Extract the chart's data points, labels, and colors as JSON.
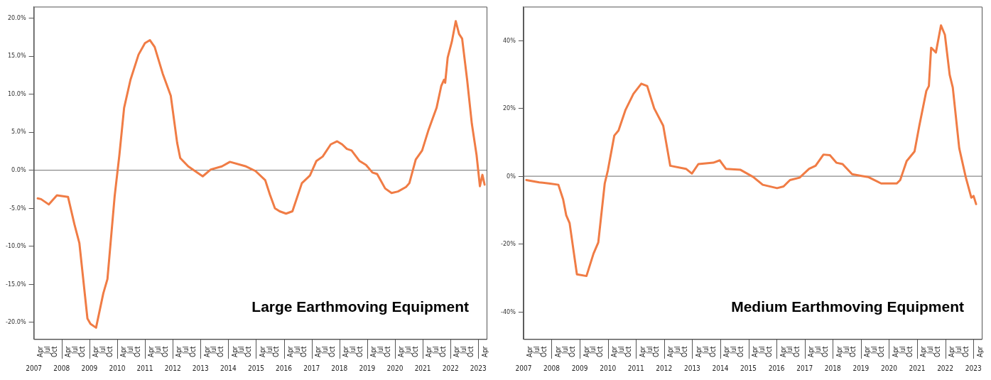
{
  "chart_data": [
    {
      "type": "line",
      "annotations": [
        "Large Earthmoving Equipment"
      ],
      "grid": false,
      "xlim": [
        2007,
        2023.3
      ],
      "ylim": [
        -22.2,
        21.5
      ],
      "yticks": [
        {
          "value": -20,
          "label": "-20.0%"
        },
        {
          "value": -15,
          "label": "-15.0%"
        },
        {
          "value": -10,
          "label": "-10.0%"
        },
        {
          "value": -5,
          "label": "-5.0%"
        },
        {
          "value": 0,
          "label": "0.0%"
        },
        {
          "value": 5,
          "label": "5.0%"
        },
        {
          "value": 10,
          "label": "10.0%"
        },
        {
          "value": 15,
          "label": "15.0%"
        },
        {
          "value": 20,
          "label": "20.0%"
        }
      ],
      "xticks": [
        2007,
        2008,
        2009,
        2010,
        2011,
        2012,
        2013,
        2014,
        2015,
        2016,
        2017,
        2018,
        2019,
        2020,
        2021,
        2022,
        2023
      ],
      "x2lim": [
        "2007-01-01",
        "2023-04-20"
      ],
      "x2ticks": [
        {
          "value": "2007-04",
          "label": "Apr"
        },
        {
          "value": "2007-07",
          "label": "Jul"
        },
        {
          "value": "2007-10",
          "label": "Oct"
        },
        {
          "value": "2008-04",
          "label": "Apr"
        },
        {
          "value": "2008-07",
          "label": "Jul"
        },
        {
          "value": "2008-10",
          "label": "Oct"
        },
        {
          "value": "2009-04",
          "label": "Apr"
        },
        {
          "value": "2009-07",
          "label": "Jul"
        },
        {
          "value": "2009-10",
          "label": "Oct"
        },
        {
          "value": "2010-04",
          "label": "Apr"
        },
        {
          "value": "2010-07",
          "label": "Jul"
        },
        {
          "value": "2010-10",
          "label": "Oct"
        },
        {
          "value": "2011-04",
          "label": "Apr"
        },
        {
          "value": "2011-07",
          "label": "Jul"
        },
        {
          "value": "2011-10",
          "label": "Oct"
        },
        {
          "value": "2012-04",
          "label": "Apr"
        },
        {
          "value": "2012-07",
          "label": "Jul"
        },
        {
          "value": "2012-10",
          "label": "Oct"
        },
        {
          "value": "2013-04",
          "label": "Apr"
        },
        {
          "value": "2013-07",
          "label": "Jul"
        },
        {
          "value": "2013-10",
          "label": "Oct"
        },
        {
          "value": "2014-04",
          "label": "Apr"
        },
        {
          "value": "2014-07",
          "label": "Jul"
        },
        {
          "value": "2014-10",
          "label": "Oct"
        },
        {
          "value": "2015-04",
          "label": "Apr"
        },
        {
          "value": "2015-07",
          "label": "Jul"
        },
        {
          "value": "2015-10",
          "label": "Oct"
        },
        {
          "value": "2016-04",
          "label": "Apr"
        },
        {
          "value": "2016-07",
          "label": "Jul"
        },
        {
          "value": "2016-10",
          "label": "Oct"
        },
        {
          "value": "2017-04",
          "label": "Apr"
        },
        {
          "value": "2017-07",
          "label": "Jul"
        },
        {
          "value": "2017-10",
          "label": "Oct"
        },
        {
          "value": "2018-04",
          "label": "Apr"
        },
        {
          "value": "2018-07",
          "label": "Jul"
        },
        {
          "value": "2018-10",
          "label": "Oct"
        },
        {
          "value": "2019-04",
          "label": "Apr"
        },
        {
          "value": "2019-07",
          "label": "Jul"
        },
        {
          "value": "2019-10",
          "label": "Oct"
        },
        {
          "value": "2020-04",
          "label": "Apr"
        },
        {
          "value": "2020-07",
          "label": "Jul"
        },
        {
          "value": "2020-10",
          "label": "Oct"
        },
        {
          "value": "2021-04",
          "label": "Apr"
        },
        {
          "value": "2021-07",
          "label": "Jul"
        },
        {
          "value": "2021-10",
          "label": "Oct"
        },
        {
          "value": "2022-04",
          "label": "Apr"
        },
        {
          "value": "2022-07",
          "label": "Jul"
        },
        {
          "value": "2022-10",
          "label": "Oct"
        },
        {
          "value": "2023-04",
          "label": "Apr"
        }
      ],
      "ref_lines": [
        {
          "axis": "y",
          "value": 0,
          "color": "#8a8a8a"
        }
      ],
      "x": [
        2007.14,
        2007.26,
        2007.54,
        2007.83,
        2008.23,
        2008.46,
        2008.64,
        2008.93,
        2009.04,
        2009.24,
        2009.5,
        2009.65,
        2009.91,
        2010.08,
        2010.25,
        2010.48,
        2010.77,
        2011.0,
        2011.18,
        2011.35,
        2011.64,
        2011.93,
        2012.16,
        2012.27,
        2012.56,
        2013.08,
        2013.37,
        2013.77,
        2014.06,
        2014.64,
        2014.98,
        2015.33,
        2015.5,
        2015.68,
        2015.85,
        2016.08,
        2016.31,
        2016.65,
        2016.94,
        2017.17,
        2017.4,
        2017.69,
        2017.92,
        2018.1,
        2018.27,
        2018.44,
        2018.73,
        2018.96,
        2019.19,
        2019.36,
        2019.65,
        2019.88,
        2020.11,
        2020.4,
        2020.52,
        2020.75,
        2020.98,
        2021.21,
        2021.33,
        2021.5,
        2021.67,
        2021.77,
        2021.81,
        2021.9,
        2022.05,
        2022.19,
        2022.31,
        2022.42,
        2022.6,
        2022.77,
        2022.94,
        2023.06,
        2023.15,
        2023.23
      ],
      "series": [
        {
          "color": "#f07c45",
          "values": [
            -3.7,
            -3.8,
            -4.5,
            -3.3,
            -3.5,
            -7.1,
            -9.6,
            -19.5,
            -20.2,
            -20.7,
            -16.2,
            -14.3,
            -3.4,
            2.0,
            8.2,
            11.9,
            15.2,
            16.7,
            17.1,
            16.2,
            12.7,
            9.8,
            3.6,
            1.6,
            0.5,
            -0.8,
            0.1,
            0.5,
            1.1,
            0.5,
            -0.1,
            -1.3,
            -3.2,
            -5.0,
            -5.4,
            -5.7,
            -5.4,
            -1.7,
            -0.7,
            1.2,
            1.8,
            3.4,
            3.8,
            3.4,
            2.8,
            2.6,
            1.2,
            0.7,
            -0.3,
            -0.5,
            -2.4,
            -3.0,
            -2.8,
            -2.2,
            -1.7,
            1.4,
            2.6,
            5.3,
            6.5,
            8.2,
            11.1,
            11.9,
            11.5,
            14.8,
            16.9,
            19.6,
            17.9,
            17.3,
            11.9,
            6.1,
            2.0,
            -2.1,
            -0.6,
            -1.9
          ]
        }
      ]
    },
    {
      "type": "line",
      "annotations": [
        "Medium Earthmoving Equipment"
      ],
      "grid": false,
      "xlim": [
        2007,
        2023.3
      ],
      "ylim": [
        -48,
        50
      ],
      "yticks": [
        {
          "value": -40,
          "label": "-40%"
        },
        {
          "value": -20,
          "label": "-20%"
        },
        {
          "value": 0,
          "label": "0%"
        },
        {
          "value": 20,
          "label": "20%"
        },
        {
          "value": 40,
          "label": "40%"
        }
      ],
      "xticks": [
        2007,
        2008,
        2009,
        2010,
        2011,
        2012,
        2013,
        2014,
        2015,
        2016,
        2017,
        2018,
        2019,
        2020,
        2021,
        2022,
        2023
      ],
      "x2lim": [
        "2007-01-01",
        "2023-04-20"
      ],
      "x2ticks": [
        {
          "value": "2007-04",
          "label": "Apr"
        },
        {
          "value": "2007-07",
          "label": "Jul"
        },
        {
          "value": "2007-10",
          "label": "Oct"
        },
        {
          "value": "2008-04",
          "label": "Apr"
        },
        {
          "value": "2008-07",
          "label": "Jul"
        },
        {
          "value": "2008-10",
          "label": "Oct"
        },
        {
          "value": "2009-04",
          "label": "Apr"
        },
        {
          "value": "2009-07",
          "label": "Jul"
        },
        {
          "value": "2009-10",
          "label": "Oct"
        },
        {
          "value": "2010-04",
          "label": "Apr"
        },
        {
          "value": "2010-07",
          "label": "Jul"
        },
        {
          "value": "2010-10",
          "label": "Oct"
        },
        {
          "value": "2011-04",
          "label": "Apr"
        },
        {
          "value": "2011-07",
          "label": "Jul"
        },
        {
          "value": "2011-10",
          "label": "Oct"
        },
        {
          "value": "2012-04",
          "label": "Apr"
        },
        {
          "value": "2012-07",
          "label": "Jul"
        },
        {
          "value": "2012-10",
          "label": "Oct"
        },
        {
          "value": "2013-04",
          "label": "Apr"
        },
        {
          "value": "2013-07",
          "label": "Jul"
        },
        {
          "value": "2013-10",
          "label": "Oct"
        },
        {
          "value": "2014-04",
          "label": "Apr"
        },
        {
          "value": "2014-07",
          "label": "Jul"
        },
        {
          "value": "2014-10",
          "label": "Oct"
        },
        {
          "value": "2015-04",
          "label": "Apr"
        },
        {
          "value": "2015-07",
          "label": "Jul"
        },
        {
          "value": "2015-10",
          "label": "Oct"
        },
        {
          "value": "2016-04",
          "label": "Apr"
        },
        {
          "value": "2016-07",
          "label": "Jul"
        },
        {
          "value": "2016-10",
          "label": "Oct"
        },
        {
          "value": "2017-04",
          "label": "Apr"
        },
        {
          "value": "2017-07",
          "label": "Jul"
        },
        {
          "value": "2017-10",
          "label": "Oct"
        },
        {
          "value": "2018-04",
          "label": "Apr"
        },
        {
          "value": "2018-07",
          "label": "Jul"
        },
        {
          "value": "2018-10",
          "label": "Oct"
        },
        {
          "value": "2019-04",
          "label": "Apr"
        },
        {
          "value": "2019-07",
          "label": "Jul"
        },
        {
          "value": "2019-10",
          "label": "Oct"
        },
        {
          "value": "2020-04",
          "label": "Apr"
        },
        {
          "value": "2020-07",
          "label": "Jul"
        },
        {
          "value": "2020-10",
          "label": "Oct"
        },
        {
          "value": "2021-04",
          "label": "Apr"
        },
        {
          "value": "2021-07",
          "label": "Jul"
        },
        {
          "value": "2021-10",
          "label": "Oct"
        },
        {
          "value": "2022-04",
          "label": "Apr"
        },
        {
          "value": "2022-07",
          "label": "Jul"
        },
        {
          "value": "2022-10",
          "label": "Oct"
        },
        {
          "value": "2023-04",
          "label": "Apr"
        }
      ],
      "ref_lines": [
        {
          "axis": "y",
          "value": 0,
          "color": "#8a8a8a"
        }
      ],
      "x": [
        2007.1,
        2007.56,
        2007.9,
        2008.24,
        2008.41,
        2008.52,
        2008.64,
        2008.9,
        2009.24,
        2009.49,
        2009.66,
        2009.89,
        2010.0,
        2010.23,
        2010.38,
        2010.63,
        2010.91,
        2011.19,
        2011.4,
        2011.65,
        2011.97,
        2012.22,
        2012.78,
        2012.99,
        2013.22,
        2013.75,
        2013.98,
        2014.2,
        2014.72,
        2015.17,
        2015.51,
        2016.02,
        2016.25,
        2016.48,
        2016.82,
        2017.16,
        2017.39,
        2017.67,
        2017.9,
        2018.13,
        2018.35,
        2018.69,
        2019.03,
        2019.26,
        2019.72,
        2020.28,
        2020.4,
        2020.63,
        2020.91,
        2021.08,
        2021.33,
        2021.42,
        2021.5,
        2021.67,
        2021.85,
        2021.99,
        2022.16,
        2022.27,
        2022.5,
        2022.73,
        2022.93,
        2023.01,
        2023.1
      ],
      "series": [
        {
          "color": "#f07c45",
          "values": [
            -1.1,
            -1.8,
            -2.1,
            -2.5,
            -6.8,
            -11.5,
            -13.8,
            -28.9,
            -29.4,
            -22.8,
            -19.5,
            -2.1,
            1.7,
            12.0,
            13.5,
            19.6,
            24.3,
            27.3,
            26.6,
            20.0,
            14.9,
            3.1,
            2.2,
            0.8,
            3.6,
            4.0,
            4.7,
            2.2,
            1.9,
            -0.2,
            -2.5,
            -3.5,
            -3.0,
            -1.1,
            -0.4,
            2.2,
            3.1,
            6.4,
            6.2,
            4.0,
            3.6,
            0.6,
            0.1,
            -0.2,
            -2.1,
            -2.1,
            -1.1,
            4.5,
            7.3,
            14.9,
            25.2,
            26.6,
            37.9,
            36.5,
            44.5,
            41.7,
            29.9,
            26.2,
            8.3,
            -0.2,
            -6.3,
            -5.8,
            -8.2
          ]
        }
      ]
    }
  ]
}
